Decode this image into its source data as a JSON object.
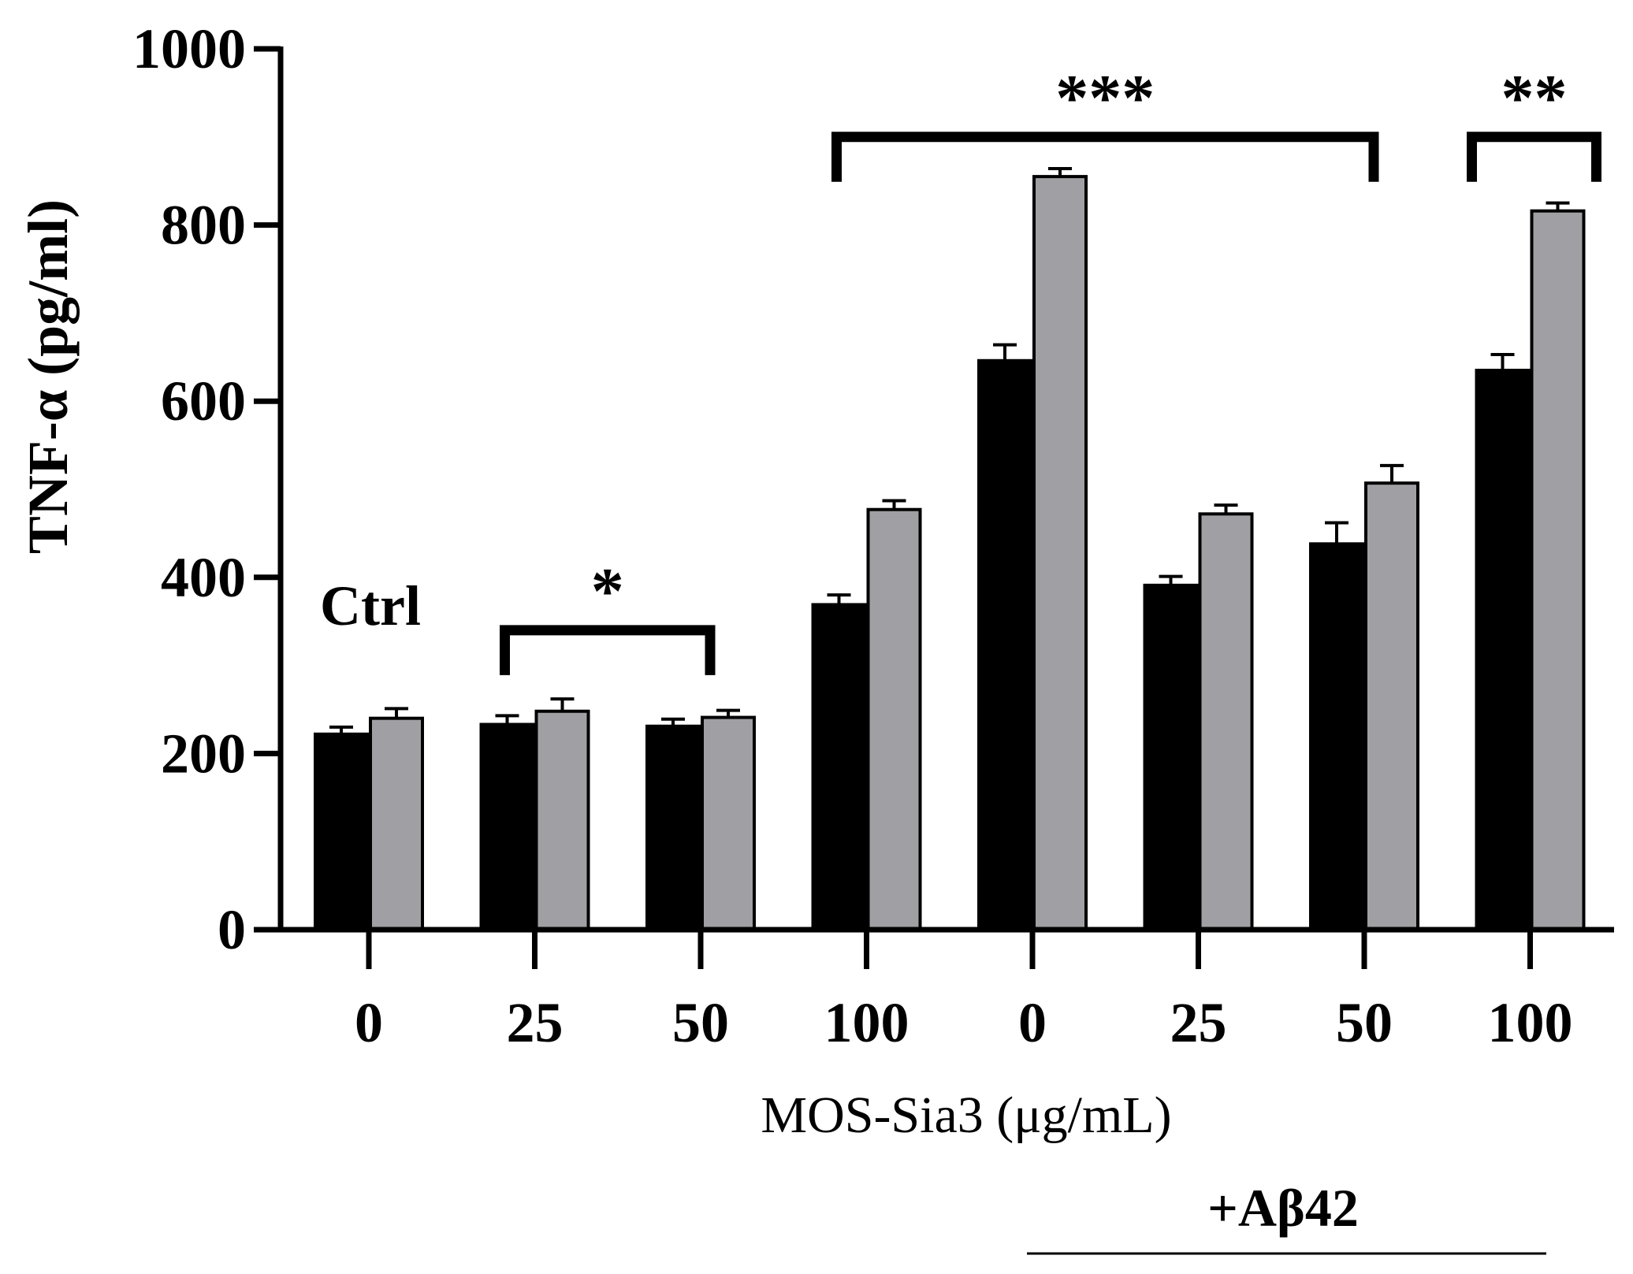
{
  "chart_data": {
    "type": "bar",
    "ylabel": "TNF-α (pg/ml)",
    "xlabel": "MOS-Sia3 (μg/mL)",
    "ylim": [
      0,
      1000
    ],
    "yticks": [
      0,
      200,
      400,
      600,
      800,
      1000
    ],
    "categories": [
      "0",
      "25",
      "50",
      "100",
      "0",
      "25",
      "50",
      "100"
    ],
    "series": [
      {
        "name": "black",
        "color": "#000000",
        "values": [
          222,
          233,
          231,
          369,
          646,
          391,
          438,
          635
        ],
        "errors": [
          8,
          10,
          8,
          11,
          18,
          10,
          24,
          18
        ]
      },
      {
        "name": "gray",
        "color": "#a0a0a4",
        "values": [
          240,
          248,
          241,
          477,
          855,
          472,
          507,
          816
        ],
        "errors": [
          11,
          14,
          8,
          10,
          9,
          10,
          20,
          9
        ]
      }
    ],
    "annotations": {
      "ctrl_label": "Ctrl",
      "abeta_label": "+Aβ42",
      "brackets": [
        {
          "from_category": 1,
          "to_category": 2,
          "level": 340,
          "label": "*"
        },
        {
          "from_category": 3,
          "to_category": 6,
          "level": 900,
          "label": "***"
        },
        {
          "from_category": 7,
          "to_category": 7,
          "level": 900,
          "label": "**"
        }
      ]
    }
  }
}
